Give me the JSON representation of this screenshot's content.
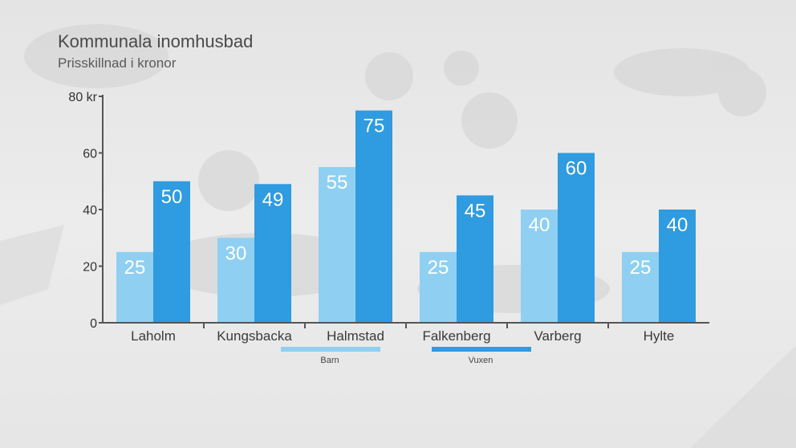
{
  "chart_data": {
    "type": "bar",
    "title": "Kommunala inomhusbad",
    "subtitle": "Prisskillnad i kronor",
    "categories": [
      "Laholm",
      "Kungsbacka",
      "Halmstad",
      "Falkenberg",
      "Varberg",
      "Hylte"
    ],
    "series": [
      {
        "name": "Barn",
        "values": [
          25,
          30,
          55,
          25,
          40,
          25
        ],
        "color": "#8fd0f2"
      },
      {
        "name": "Vuxen",
        "values": [
          50,
          49,
          75,
          45,
          60,
          40
        ],
        "color": "#2f9be0"
      }
    ],
    "yticks": [
      "0",
      "20",
      "40",
      "60",
      "80 kr"
    ],
    "ylim": [
      0,
      80
    ],
    "legend_position": "bottom-center",
    "grid": false
  },
  "colors": {
    "axis": "#555555",
    "title": "#4a4a4a"
  }
}
